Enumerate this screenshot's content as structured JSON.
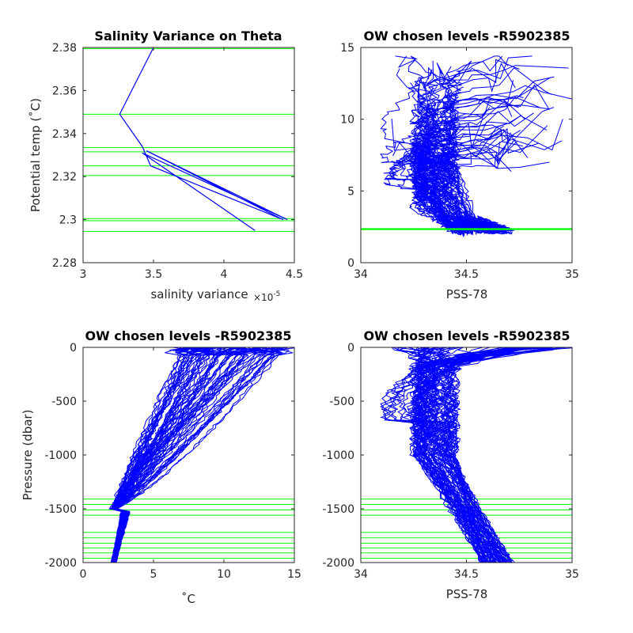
{
  "colors": {
    "profile": "#0000ff",
    "level": "#00ff00",
    "axis": "#262626"
  },
  "chart_data": [
    {
      "type": "line",
      "title": "Salinity Variance on Theta",
      "xlabel": "salinity variance",
      "xexponent": "×10",
      "xexponent_power": "-5",
      "ylabel": "Potential temp (˚C)",
      "xlim": [
        3,
        4.5
      ],
      "ylim": [
        2.28,
        2.38
      ],
      "xticks": [
        3,
        3.5,
        4,
        4.5
      ],
      "xtick_labels": [
        "3",
        "3.5",
        "4",
        "4.5"
      ],
      "yticks": [
        2.28,
        2.3,
        2.32,
        2.34,
        2.36,
        2.38
      ],
      "ytick_labels": [
        "2.28",
        "2.3",
        "2.32",
        "2.34",
        "2.36",
        "2.38"
      ],
      "series": [
        {
          "x": [
            3.5,
            3.26,
            3.42,
            3.48,
            4.42,
            3.45,
            4.45,
            3.42,
            4.22
          ],
          "y": [
            2.38,
            2.349,
            2.334,
            2.325,
            2.3,
            2.332,
            2.3,
            2.331,
            2.295
          ]
        }
      ],
      "hlines": [
        2.3795,
        2.349,
        2.3335,
        2.3315,
        2.325,
        2.3205,
        2.3005,
        2.2995,
        2.2945
      ]
    },
    {
      "type": "line",
      "title": "OW chosen levels -R5902385",
      "xlabel": "PSS-78",
      "ylabel": "",
      "xlim": [
        34,
        35
      ],
      "ylim": [
        0,
        15
      ],
      "xticks": [
        34,
        34.5,
        35
      ],
      "xtick_labels": [
        "34",
        "34.5",
        "35"
      ],
      "yticks": [
        0,
        5,
        10,
        15
      ],
      "ytick_labels": [
        "0",
        "5",
        "10",
        "15"
      ],
      "profile_count": 70,
      "hlines": [
        2.3,
        2.33,
        2.35,
        2.38
      ]
    },
    {
      "type": "line",
      "title": "OW chosen levels -R5902385",
      "xlabel": "˚C",
      "ylabel": "Pressure (dbar)",
      "xlim": [
        0,
        15
      ],
      "ylim": [
        -2000,
        0
      ],
      "xticks": [
        0,
        5,
        10,
        15
      ],
      "xtick_labels": [
        "0",
        "5",
        "10",
        "15"
      ],
      "yticks": [
        -2000,
        -1500,
        -1000,
        -500,
        0
      ],
      "ytick_labels": [
        "-2000",
        "-1500",
        "-1000",
        "-500",
        "0"
      ],
      "profile_count": 70,
      "hlines": [
        -1410,
        -1460,
        -1510,
        -1560,
        -1720,
        -1770,
        -1820,
        -1865,
        -1910,
        -1960
      ]
    },
    {
      "type": "line",
      "title": "OW chosen levels -R5902385",
      "xlabel": "PSS-78",
      "ylabel": "",
      "xlim": [
        34,
        35
      ],
      "ylim": [
        -2000,
        0
      ],
      "xticks": [
        34,
        34.5,
        35
      ],
      "xtick_labels": [
        "34",
        "34.5",
        "35"
      ],
      "yticks": [
        -2000,
        -1500,
        -1000,
        -500,
        0
      ],
      "ytick_labels": [
        "-2000",
        "-1500",
        "-1000",
        "-500",
        "0"
      ],
      "profile_count": 70,
      "hlines": [
        -1410,
        -1460,
        -1510,
        -1560,
        -1720,
        -1770,
        -1820,
        -1865,
        -1910,
        -1960
      ]
    }
  ]
}
